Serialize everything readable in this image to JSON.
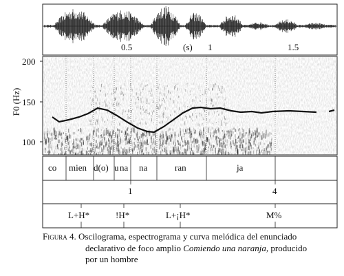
{
  "oscillogram": {
    "time_ticks": [
      "0.5",
      "(s)",
      "1",
      "1.5"
    ]
  },
  "spectrogram": {
    "y_axis_label": "F0 (Hz)",
    "y_ticks": [
      "200",
      "150",
      "100"
    ]
  },
  "tiers": {
    "syllables": [
      "co",
      "mien",
      "d(o)",
      "u",
      "na",
      "na",
      "ran",
      "ja"
    ],
    "break_indices": [
      "1",
      "4"
    ],
    "tones": [
      "L+H*",
      "!H*",
      "L+¡H*",
      "M%"
    ]
  },
  "caption": {
    "label": "Figura 4.",
    "text_part1": "Oscilograma, espectrograma y curva melódica del enunciado",
    "text_part2": "declarativo de foco amplio ",
    "example": "Comiendo una naranja,",
    "text_part3": " producido",
    "text_part4": "por un hombre"
  }
}
